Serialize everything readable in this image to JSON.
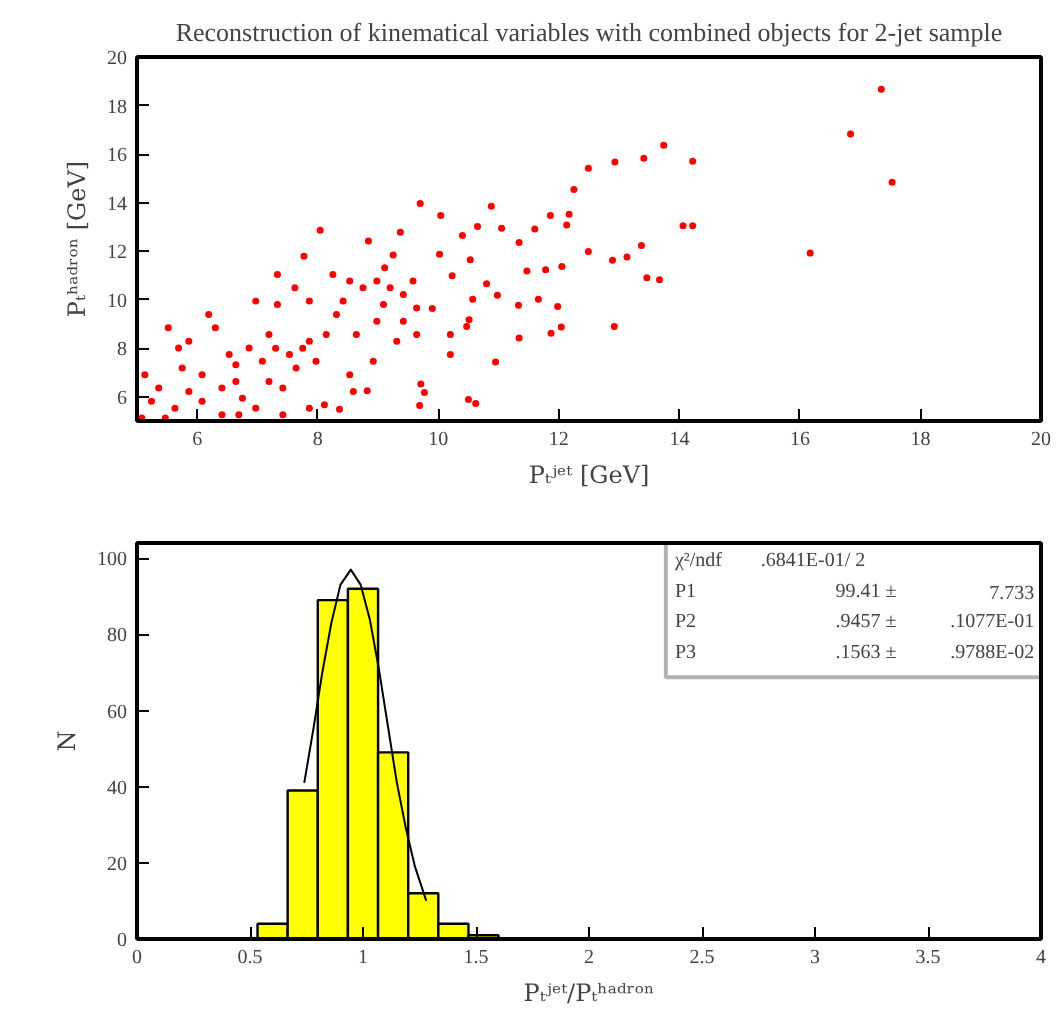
{
  "chart_data": [
    {
      "type": "scatter",
      "title": "Reconstruction of kinematical variables with combined objects for 2-jet sample",
      "xlabel": "Pₜʲᵉᵗ [GeV]",
      "ylabel": "Pₜʰᵃᵈʳᵒⁿ [GeV]",
      "xlim": [
        5,
        20
      ],
      "ylim": [
        5,
        20
      ],
      "xticks": [
        6,
        8,
        10,
        12,
        14,
        16,
        18,
        20
      ],
      "yticks": [
        6,
        8,
        10,
        12,
        14,
        16,
        18,
        20
      ],
      "grid": false,
      "marker": "circle",
      "color": "#ff0000",
      "x": [
        17.35,
        16.84,
        17.53,
        16.17,
        13.74,
        13.41,
        14.22,
        12.93,
        12.49,
        12.25,
        14.06,
        14.22,
        13.37,
        12.49,
        12.89,
        13.13,
        13.46,
        13.67,
        12.92,
        12.17,
        12.13,
        11.86,
        11.6,
        11.34,
        10.88,
        11.05,
        10.65,
        10.4,
        10.04,
        9.7,
        9.37,
        8.04,
        8.84,
        7.77,
        7.33,
        12.05,
        11.78,
        11.47,
        11.66,
        11.98,
        11.33,
        12.04,
        11.87,
        11.34,
        10.95,
        10.98,
        10.8,
        10.53,
        10.23,
        10.02,
        10.51,
        10.47,
        10.57,
        10.5,
        10.62,
        9.71,
        9.69,
        9.77,
        10.2,
        10.2,
        9.9,
        9.58,
        9.25,
        9.11,
        9.42,
        8.98,
        9.09,
        9.31,
        8.92,
        8.64,
        8.53,
        8.59,
        8.82,
        8.36,
        8.11,
        7.86,
        7.62,
        7.86,
        8.25,
        8.31,
        8.14,
        7.86,
        7.53,
        7.33,
        6.97,
        7.19,
        6.86,
        6.64,
        6.3,
        6.19,
        5.86,
        5.69,
        5.52,
        5.75,
        5.36,
        5.24,
        5.08,
        5.13,
        6.08,
        6.41,
        6.75,
        6.97,
        7.19,
        7.42,
        7.64,
        7.97,
        7.08,
        6.53,
        6.08,
        5.63,
        6.41,
        5.47,
        7.42,
        6.69,
        5.86,
        6.64,
        7.3,
        7.75,
        8.42,
        8.75,
        9.2,
        9.64,
        9.42,
        9.64,
        8.98,
        8.53
      ],
      "values": [
        18.67,
        16.83,
        14.84,
        11.92,
        16.36,
        15.83,
        15.7,
        15.67,
        15.42,
        14.54,
        13.05,
        13.05,
        12.23,
        11.98,
        11.62,
        11.76,
        10.9,
        10.82,
        8.89,
        13.52,
        13.08,
        13.47,
        12.91,
        12.36,
        13.85,
        12.94,
        13.02,
        12.64,
        13.47,
        13.96,
        12.78,
        12.86,
        12.42,
        11.79,
        11.04,
        11.37,
        11.23,
        11.18,
        10.02,
        9.72,
        9.77,
        8.87,
        8.62,
        8.42,
        7.43,
        10.18,
        10.66,
        11.65,
        10.99,
        11.87,
        9.17,
        8.89,
        10.02,
        5.89,
        5.72,
        6.52,
        5.64,
        6.17,
        8.56,
        7.74,
        9.64,
        10.77,
        11.84,
        11.32,
        10.21,
        9.11,
        9.8,
        8.29,
        7.46,
        8.56,
        6.91,
        6.22,
        6.25,
        5.48,
        5.67,
        5.53,
        10.49,
        9.94,
        11.04,
        9.39,
        8.56,
        8.29,
        7.74,
        9.8,
        9.94,
        8.56,
        8.01,
        7.32,
        8.84,
        9.39,
        8.29,
        8.01,
        8.84,
        7.18,
        6.36,
        5.81,
        5.12,
        6.91,
        6.91,
        6.36,
        5.94,
        5.53,
        6.63,
        6.36,
        7.18,
        7.46,
        7.46,
        7.74,
        5.81,
        5.53,
        5.26,
        5.12,
        5.26,
        5.26,
        6.22,
        6.63,
        8.0,
        8.0,
        9.94,
        10.49,
        10.49,
        9.66,
        9.11,
        8.56,
        10.77,
        10.77
      ]
    },
    {
      "type": "histogram",
      "xlabel": "Pₜʲᵉᵗ/Pₜʰᵃᵈʳᵒⁿ",
      "ylabel": "N",
      "xlim": [
        0,
        4
      ],
      "ylim": [
        0,
        104
      ],
      "xticks": [
        0,
        0.5,
        1,
        1.5,
        2,
        2.5,
        3,
        3.5,
        4
      ],
      "yticks": [
        0,
        20,
        40,
        60,
        80,
        100
      ],
      "grid": false,
      "color": "#ffff00",
      "bins": [
        0.5333,
        0.6667,
        0.8,
        0.9333,
        1.0667,
        1.2,
        1.3333,
        1.4667,
        1.6
      ],
      "values": [
        4,
        39,
        89,
        92,
        49,
        12,
        4,
        1
      ],
      "series": [
        {
          "type": "line",
          "color": "#000000",
          "x": [
            0.74,
            0.78,
            0.82,
            0.86,
            0.9,
            0.946,
            0.99,
            1.03,
            1.07,
            1.11,
            1.15,
            1.19,
            1.23,
            1.28
          ],
          "values": [
            41,
            55,
            70,
            83,
            93,
            97,
            93,
            84,
            71,
            56,
            41,
            29,
            19,
            10
          ]
        }
      ],
      "annotations": [
        "χ²/ndf",
        ".6841E-01/  2",
        "P1",
        "99.41 ±",
        "7.733",
        "P2",
        ".9457 ±",
        ".1077E-01",
        "P3",
        ".1563 ±",
        ".9788E-02"
      ]
    }
  ]
}
